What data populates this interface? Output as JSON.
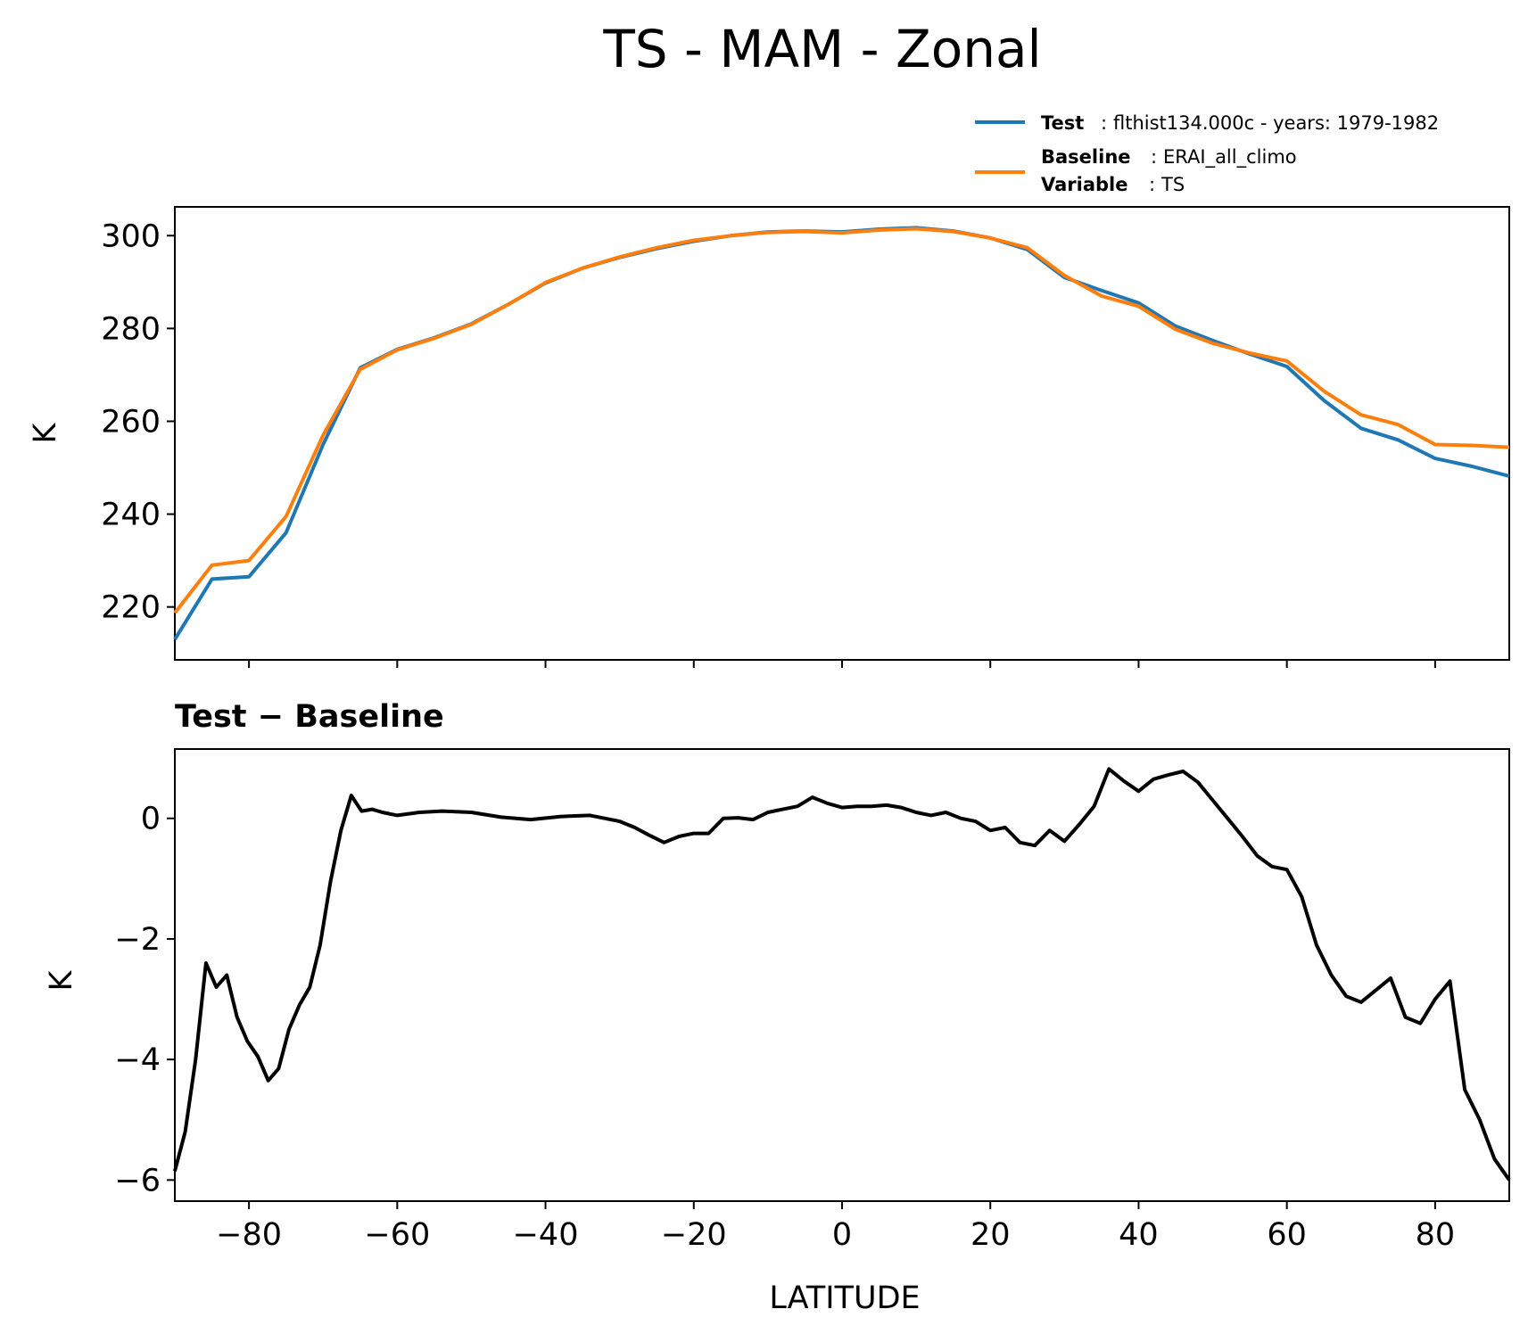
{
  "chart_data": {
    "title": "TS - MAM - Zonal",
    "xlabel": "LATITUDE",
    "xlim": [
      -90,
      90
    ],
    "xticks": [
      -80,
      -60,
      -40,
      -20,
      0,
      20,
      40,
      60,
      80
    ],
    "xtick_labels": [
      "−80",
      "−60",
      "−40",
      "−20",
      "0",
      "20",
      "40",
      "60",
      "80"
    ],
    "legend": {
      "placement": "top-right",
      "entries": [
        {
          "key": "Test",
          "sep": ":",
          "value": "flthist134.000c - years: 1979-1982",
          "color": "#1f77b4"
        },
        {
          "key": "Baseline",
          "sep": ":",
          "value": "ERAI_all_climo",
          "color": "#ff7f0e"
        },
        {
          "key": "Variable",
          "sep": ":",
          "value": "TS"
        }
      ]
    },
    "panels": [
      {
        "type": "line",
        "ylabel": "K",
        "ylim": [
          208.6,
          306.2
        ],
        "yticks": [
          220,
          240,
          260,
          280,
          300
        ],
        "ytick_labels": [
          "220",
          "240",
          "260",
          "280",
          "300"
        ],
        "series": [
          {
            "name": "Test",
            "color": "#1f77b4",
            "x": [
              -90,
              -85,
              -80,
              -75,
              -70,
              -65,
              -60,
              -55,
              -50,
              -45,
              -40,
              -35,
              -30,
              -25,
              -20,
              -15,
              -10,
              -5,
              0,
              5,
              10,
              15,
              20,
              25,
              30,
              35,
              40,
              45,
              50,
              55,
              60,
              65,
              70,
              75,
              80,
              85,
              90
            ],
            "values": [
              213,
              226,
              226.5,
              236,
              255,
              271.5,
              275.5,
              278,
              281,
              285.2,
              289.8,
              293,
              295.3,
              297.2,
              298.8,
              300,
              300.8,
              301,
              300.8,
              301.4,
              301.7,
              301,
              299.5,
              297,
              291,
              288.2,
              285.5,
              280.5,
              277.4,
              274.5,
              271.8,
              264.5,
              258.5,
              256,
              252,
              250.3,
              248.2
            ]
          },
          {
            "name": "Baseline",
            "color": "#ff7f0e",
            "x": [
              -90,
              -85,
              -80,
              -75,
              -70,
              -65,
              -60,
              -55,
              -50,
              -45,
              -40,
              -35,
              -30,
              -25,
              -20,
              -15,
              -10,
              -5,
              0,
              5,
              10,
              15,
              20,
              25,
              30,
              35,
              40,
              45,
              50,
              55,
              60,
              65,
              70,
              75,
              80,
              85,
              90
            ],
            "values": [
              218.7,
              229,
              230,
              239.5,
              257,
              271.2,
              275.4,
              277.9,
              280.9,
              285.2,
              289.9,
              293,
              295.4,
              297.4,
              299,
              300,
              300.7,
              300.9,
              300.6,
              301.2,
              301.5,
              300.9,
              299.5,
              297.4,
              291.4,
              287,
              284.8,
              279.8,
              276.8,
              274.7,
              273,
              266.5,
              261.4,
              259.3,
              255,
              254.8,
              254.4
            ]
          }
        ]
      },
      {
        "type": "line",
        "title": "Test − Baseline",
        "ylabel": "K",
        "ylim": [
          -6.35,
          1.15
        ],
        "yticks": [
          -6,
          -4,
          -2,
          0
        ],
        "ytick_labels": [
          "−6",
          "−4",
          "−2",
          "0"
        ],
        "series": [
          {
            "name": "Test - Baseline",
            "color": "#000000",
            "x": [
              -90,
              -88.6,
              -87.2,
              -85.8,
              -84.4,
              -83,
              -81.6,
              -80.2,
              -78.8,
              -77.4,
              -76,
              -74.6,
              -73.2,
              -71.8,
              -70.4,
              -69,
              -67.6,
              -66.2,
              -64.8,
              -63.4,
              -62,
              -60,
              -57,
              -54,
              -50,
              -46,
              -42,
              -38,
              -34,
              -30,
              -28,
              -26,
              -24,
              -22,
              -20,
              -18,
              -16,
              -14,
              -12,
              -10,
              -8,
              -6,
              -4,
              -2,
              0,
              2,
              4,
              6,
              8,
              10,
              12,
              14,
              16,
              18,
              20,
              22,
              24,
              26,
              28,
              30,
              32,
              34,
              36,
              38,
              40,
              42,
              44,
              46,
              48,
              50,
              52,
              54,
              56,
              58,
              60,
              62,
              64,
              66,
              68,
              70,
              72,
              74,
              76,
              78,
              80,
              82,
              84,
              86,
              88,
              90
            ],
            "values": [
              -5.85,
              -5.2,
              -4.0,
              -2.4,
              -2.8,
              -2.6,
              -3.3,
              -3.7,
              -3.95,
              -4.35,
              -4.15,
              -3.5,
              -3.1,
              -2.8,
              -2.1,
              -1.05,
              -0.2,
              0.38,
              0.12,
              0.15,
              0.1,
              0.05,
              0.1,
              0.12,
              0.1,
              0.02,
              -0.02,
              0.03,
              0.05,
              -0.05,
              -0.15,
              -0.28,
              -0.4,
              -0.3,
              -0.25,
              -0.25,
              0.0,
              0.01,
              -0.02,
              0.1,
              0.15,
              0.2,
              0.35,
              0.25,
              0.18,
              0.2,
              0.2,
              0.22,
              0.18,
              0.1,
              0.05,
              0.1,
              0.0,
              -0.05,
              -0.2,
              -0.15,
              -0.4,
              -0.45,
              -0.2,
              -0.38,
              -0.1,
              0.2,
              0.82,
              0.62,
              0.45,
              0.65,
              0.72,
              0.78,
              0.6,
              0.3,
              0.0,
              -0.3,
              -0.62,
              -0.8,
              -0.85,
              -1.3,
              -2.1,
              -2.6,
              -2.95,
              -3.05,
              -2.85,
              -2.65,
              -3.3,
              -3.4,
              -3.0,
              -2.7,
              -4.5,
              -5.0,
              -5.65,
              -6.0
            ]
          }
        ]
      }
    ]
  }
}
